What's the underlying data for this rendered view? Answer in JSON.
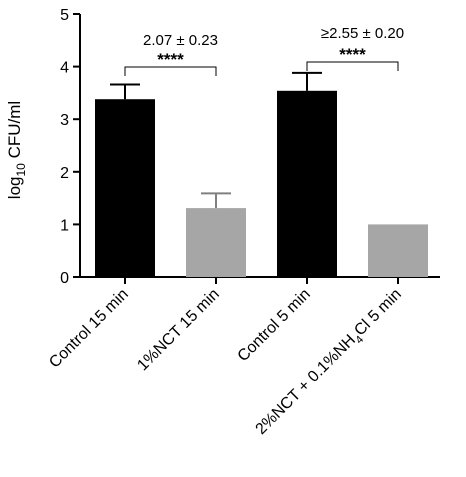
{
  "chart_data": {
    "type": "bar",
    "title": "",
    "ylabel_main": "log",
    "ylabel_sub": "10",
    "ylabel_rest": " CFU/ml",
    "ylim": [
      0,
      5
    ],
    "yticks": [
      0,
      1,
      2,
      3,
      4,
      5
    ],
    "grid": false,
    "categories": [
      {
        "label": "Control 15 min",
        "color": "#000000"
      },
      {
        "label": "1%NCT 15 min",
        "color": "#a6a6a6"
      },
      {
        "label": "Control 5 min",
        "color": "#000000"
      },
      {
        "label_parts": [
          "2%NCT + 0.1%NH",
          "4",
          "Cl 5 min"
        ],
        "color": "#a6a6a6"
      }
    ],
    "values": [
      3.38,
      1.31,
      3.54,
      1.0
    ],
    "errors": [
      0.28,
      0.28,
      0.34,
      null
    ],
    "annotations": [
      {
        "text": "2.07 ± 0.23",
        "significance": "****",
        "between": [
          0,
          1
        ]
      },
      {
        "text": "≥2.55 ± 0.20",
        "significance": "****",
        "between": [
          2,
          3
        ]
      }
    ]
  }
}
